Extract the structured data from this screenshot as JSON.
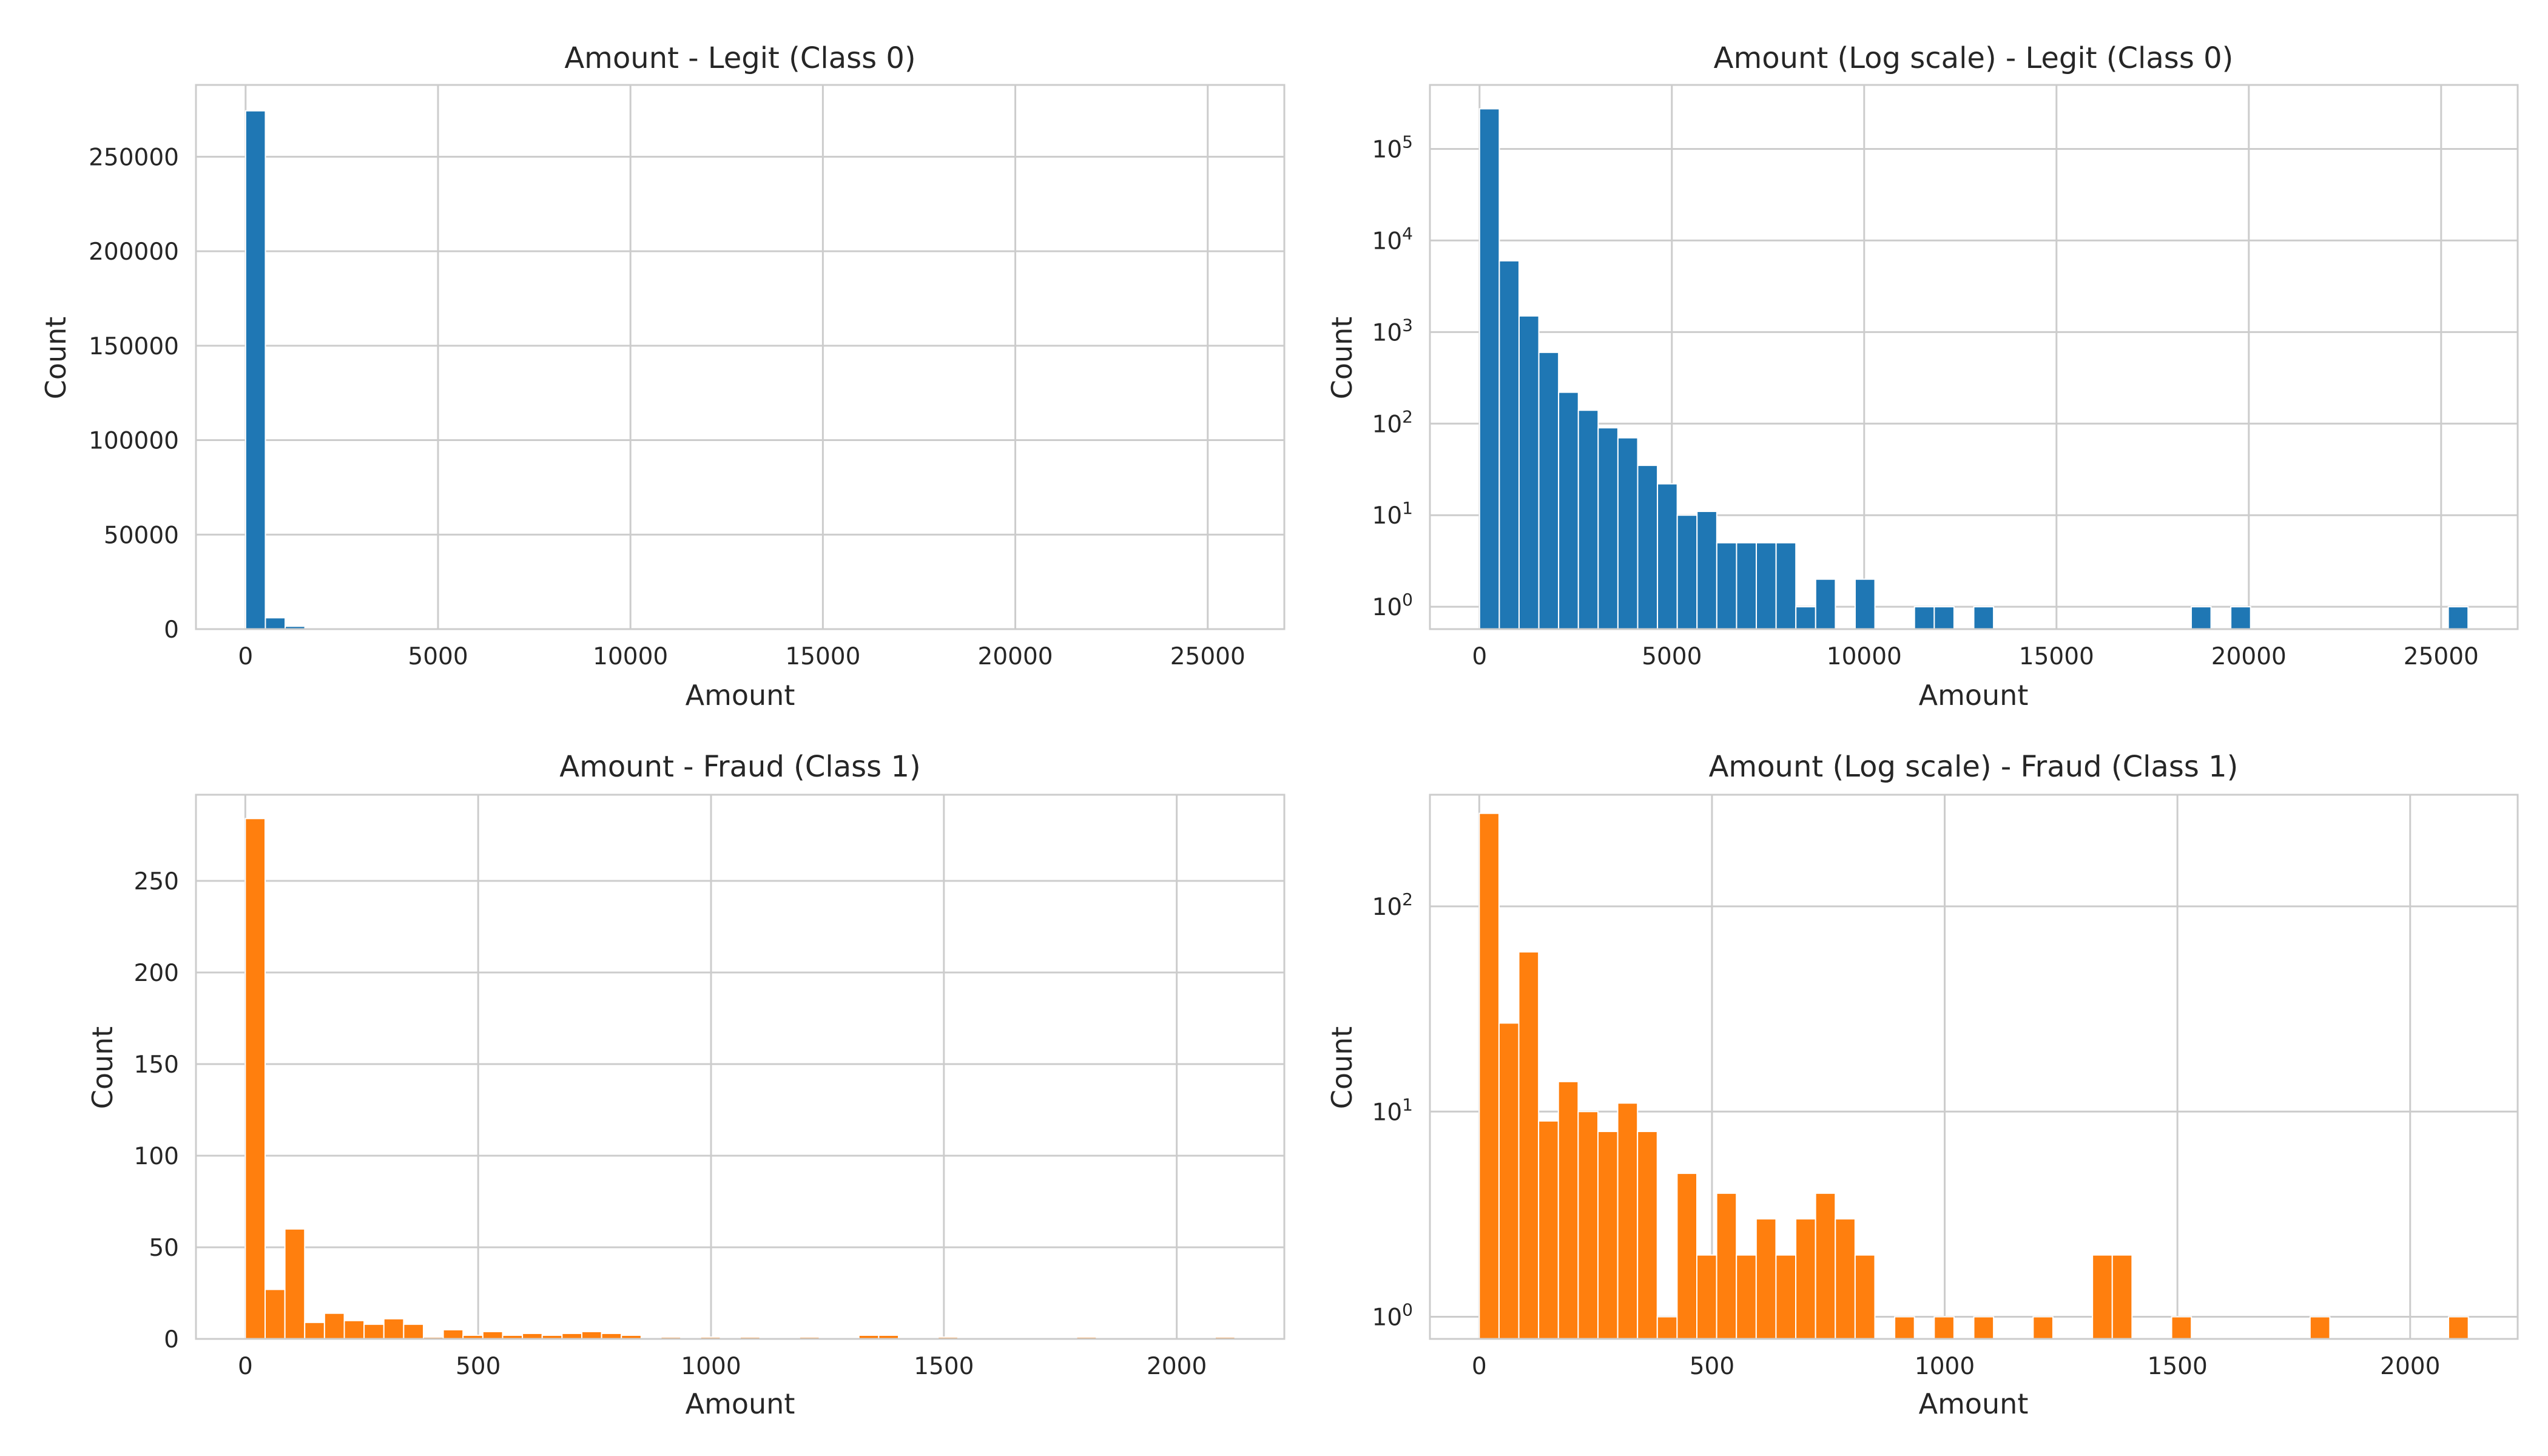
{
  "colors": {
    "legit": "#1f77b4",
    "fraud": "#ff7f0e",
    "grid": "#cccccc",
    "frame": "#cccccc"
  },
  "chart_data": [
    {
      "type": "bar",
      "title": "Amount - Legit (Class 0)",
      "xlabel": "Amount",
      "ylabel": "Count",
      "log_y": false,
      "grid": true,
      "color": "#1f77b4",
      "xlim": [
        -1290,
        26990
      ],
      "ylim": [
        0,
        288000
      ],
      "xticks": [
        0,
        5000,
        10000,
        15000,
        20000,
        25000
      ],
      "xtick_labels": [
        "0",
        "5000",
        "10000",
        "15000",
        "20000",
        "25000"
      ],
      "yticks": [
        0,
        50000,
        100000,
        150000,
        200000,
        250000
      ],
      "ytick_labels": [
        "0",
        "50000",
        "100000",
        "150000",
        "200000",
        "250000"
      ],
      "bin_width": 514,
      "bin_start": 0,
      "counts": [
        274300,
        6000,
        1500,
        600,
        220,
        140,
        90,
        70,
        35,
        22,
        10,
        11,
        5,
        5,
        5,
        5,
        1,
        2,
        0,
        2,
        0,
        0,
        1,
        1,
        0,
        1,
        0,
        0,
        0,
        0,
        0,
        0,
        0,
        0,
        0,
        0,
        1,
        0,
        1,
        0,
        0,
        0,
        0,
        0,
        0,
        0,
        0,
        0,
        0,
        1
      ]
    },
    {
      "type": "bar",
      "title": "Amount (Log scale) - Legit (Class 0)",
      "xlabel": "Amount",
      "ylabel": "Count",
      "log_y": true,
      "grid": true,
      "color": "#1f77b4",
      "xlim": [
        -1290,
        26990
      ],
      "ylim": [
        0.57,
        500000
      ],
      "xticks": [
        0,
        5000,
        10000,
        15000,
        20000,
        25000
      ],
      "xtick_labels": [
        "0",
        "5000",
        "10000",
        "15000",
        "20000",
        "25000"
      ],
      "yticks": [
        1,
        10,
        100,
        1000,
        10000,
        100000
      ],
      "ytick_labels": [
        {
          "base": "10",
          "exp": "0"
        },
        {
          "base": "10",
          "exp": "1"
        },
        {
          "base": "10",
          "exp": "2"
        },
        {
          "base": "10",
          "exp": "3"
        },
        {
          "base": "10",
          "exp": "4"
        },
        {
          "base": "10",
          "exp": "5"
        }
      ],
      "bin_width": 514,
      "bin_start": 0,
      "counts": [
        274300,
        6000,
        1500,
        600,
        220,
        140,
        90,
        70,
        35,
        22,
        10,
        11,
        5,
        5,
        5,
        5,
        1,
        2,
        0,
        2,
        0,
        0,
        1,
        1,
        0,
        1,
        0,
        0,
        0,
        0,
        0,
        0,
        0,
        0,
        0,
        0,
        1,
        0,
        1,
        0,
        0,
        0,
        0,
        0,
        0,
        0,
        0,
        0,
        0,
        1
      ]
    },
    {
      "type": "bar",
      "title": "Amount - Fraud (Class 1)",
      "xlabel": "Amount",
      "ylabel": "Count",
      "log_y": false,
      "grid": true,
      "color": "#ff7f0e",
      "xlim": [
        -106,
        2231
      ],
      "ylim": [
        0,
        297
      ],
      "xticks": [
        0,
        500,
        1000,
        1500,
        2000
      ],
      "xtick_labels": [
        "0",
        "500",
        "1000",
        "1500",
        "2000"
      ],
      "yticks": [
        0,
        50,
        100,
        150,
        200,
        250
      ],
      "ytick_labels": [
        "0",
        "50",
        "100",
        "150",
        "200",
        "250"
      ],
      "bin_width": 42.5,
      "bin_start": 0,
      "counts": [
        284,
        27,
        60,
        9,
        14,
        10,
        8,
        11,
        8,
        1,
        5,
        2,
        4,
        2,
        3,
        2,
        3,
        4,
        3,
        2,
        0,
        1,
        0,
        1,
        0,
        1,
        0,
        0,
        1,
        0,
        0,
        2,
        2,
        0,
        0,
        1,
        0,
        0,
        0,
        0,
        0,
        0,
        1,
        0,
        0,
        0,
        0,
        0,
        0,
        1
      ]
    },
    {
      "type": "bar",
      "title": "Amount (Log scale) - Fraud (Class 1)",
      "xlabel": "Amount",
      "ylabel": "Count",
      "log_y": true,
      "grid": true,
      "color": "#ff7f0e",
      "xlim": [
        -106,
        2231
      ],
      "ylim": [
        0.78,
        350
      ],
      "xticks": [
        0,
        500,
        1000,
        1500,
        2000
      ],
      "xtick_labels": [
        "0",
        "500",
        "1000",
        "1500",
        "2000"
      ],
      "yticks": [
        1,
        10,
        100
      ],
      "ytick_labels": [
        {
          "base": "10",
          "exp": "0"
        },
        {
          "base": "10",
          "exp": "1"
        },
        {
          "base": "10",
          "exp": "2"
        }
      ],
      "bin_width": 42.5,
      "bin_start": 0,
      "counts": [
        284,
        27,
        60,
        9,
        14,
        10,
        8,
        11,
        8,
        1,
        5,
        2,
        4,
        2,
        3,
        2,
        3,
        4,
        3,
        2,
        0,
        1,
        0,
        1,
        0,
        1,
        0,
        0,
        1,
        0,
        0,
        2,
        2,
        0,
        0,
        1,
        0,
        0,
        0,
        0,
        0,
        0,
        1,
        0,
        0,
        0,
        0,
        0,
        0,
        1
      ]
    }
  ]
}
